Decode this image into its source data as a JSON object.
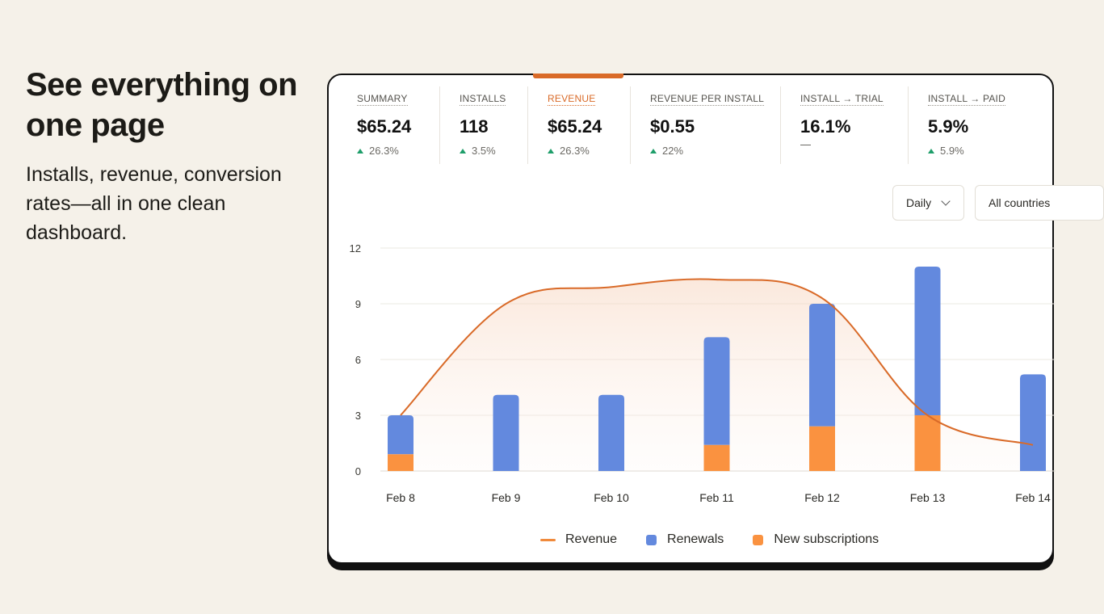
{
  "hero": {
    "title": "See everything on one page",
    "subtitle": "Installs, revenue, conversion rates—all in one clean dashboard."
  },
  "metrics": [
    {
      "label": "Summary",
      "value": "$65.24",
      "change": "26.3%",
      "trend": "up"
    },
    {
      "label": "Installs",
      "value": "118",
      "change": "3.5%",
      "trend": "up"
    },
    {
      "label": "Revenue",
      "value": "$65.24",
      "change": "26.3%",
      "trend": "up",
      "active": true
    },
    {
      "label": "Revenue per install",
      "value": "$0.55",
      "change": "22%",
      "trend": "up"
    },
    {
      "label": "Install → Trial",
      "value": "16.1%",
      "change": "—",
      "trend": "none"
    },
    {
      "label": "Install → Paid",
      "value": "5.9%",
      "change": "5.9%",
      "trend": "up"
    }
  ],
  "filters": {
    "period": "Daily",
    "country": "All countries"
  },
  "chart_data": {
    "type": "bar",
    "categories": [
      "Feb 8",
      "Feb 9",
      "Feb 10",
      "Feb 11",
      "Feb 12",
      "Feb 13",
      "Feb 14"
    ],
    "ylim": [
      0,
      12
    ],
    "yticks": [
      0,
      3,
      6,
      9,
      12
    ],
    "series": [
      {
        "name": "Renewals",
        "type": "bar",
        "color": "#6389de",
        "values": [
          2.1,
          4.1,
          4.1,
          5.8,
          6.6,
          8.0,
          5.2
        ]
      },
      {
        "name": "New subscriptions",
        "type": "bar",
        "color": "#fa9240",
        "values": [
          0.9,
          0,
          0,
          1.4,
          2.4,
          3.0,
          0
        ]
      },
      {
        "name": "Revenue",
        "type": "line",
        "color": "#d96a28",
        "values": [
          3.0,
          9.0,
          9.9,
          10.3,
          9.3,
          3.0,
          1.4
        ]
      }
    ],
    "legend_position": "bottom",
    "grid": true
  },
  "colors": {
    "accent": "#d96a28",
    "positive": "#1e9e6a",
    "background": "#f5f1e9"
  },
  "icons": {
    "trend_up": "triangle-up-icon",
    "dropdown": "chevron-down-icon"
  }
}
